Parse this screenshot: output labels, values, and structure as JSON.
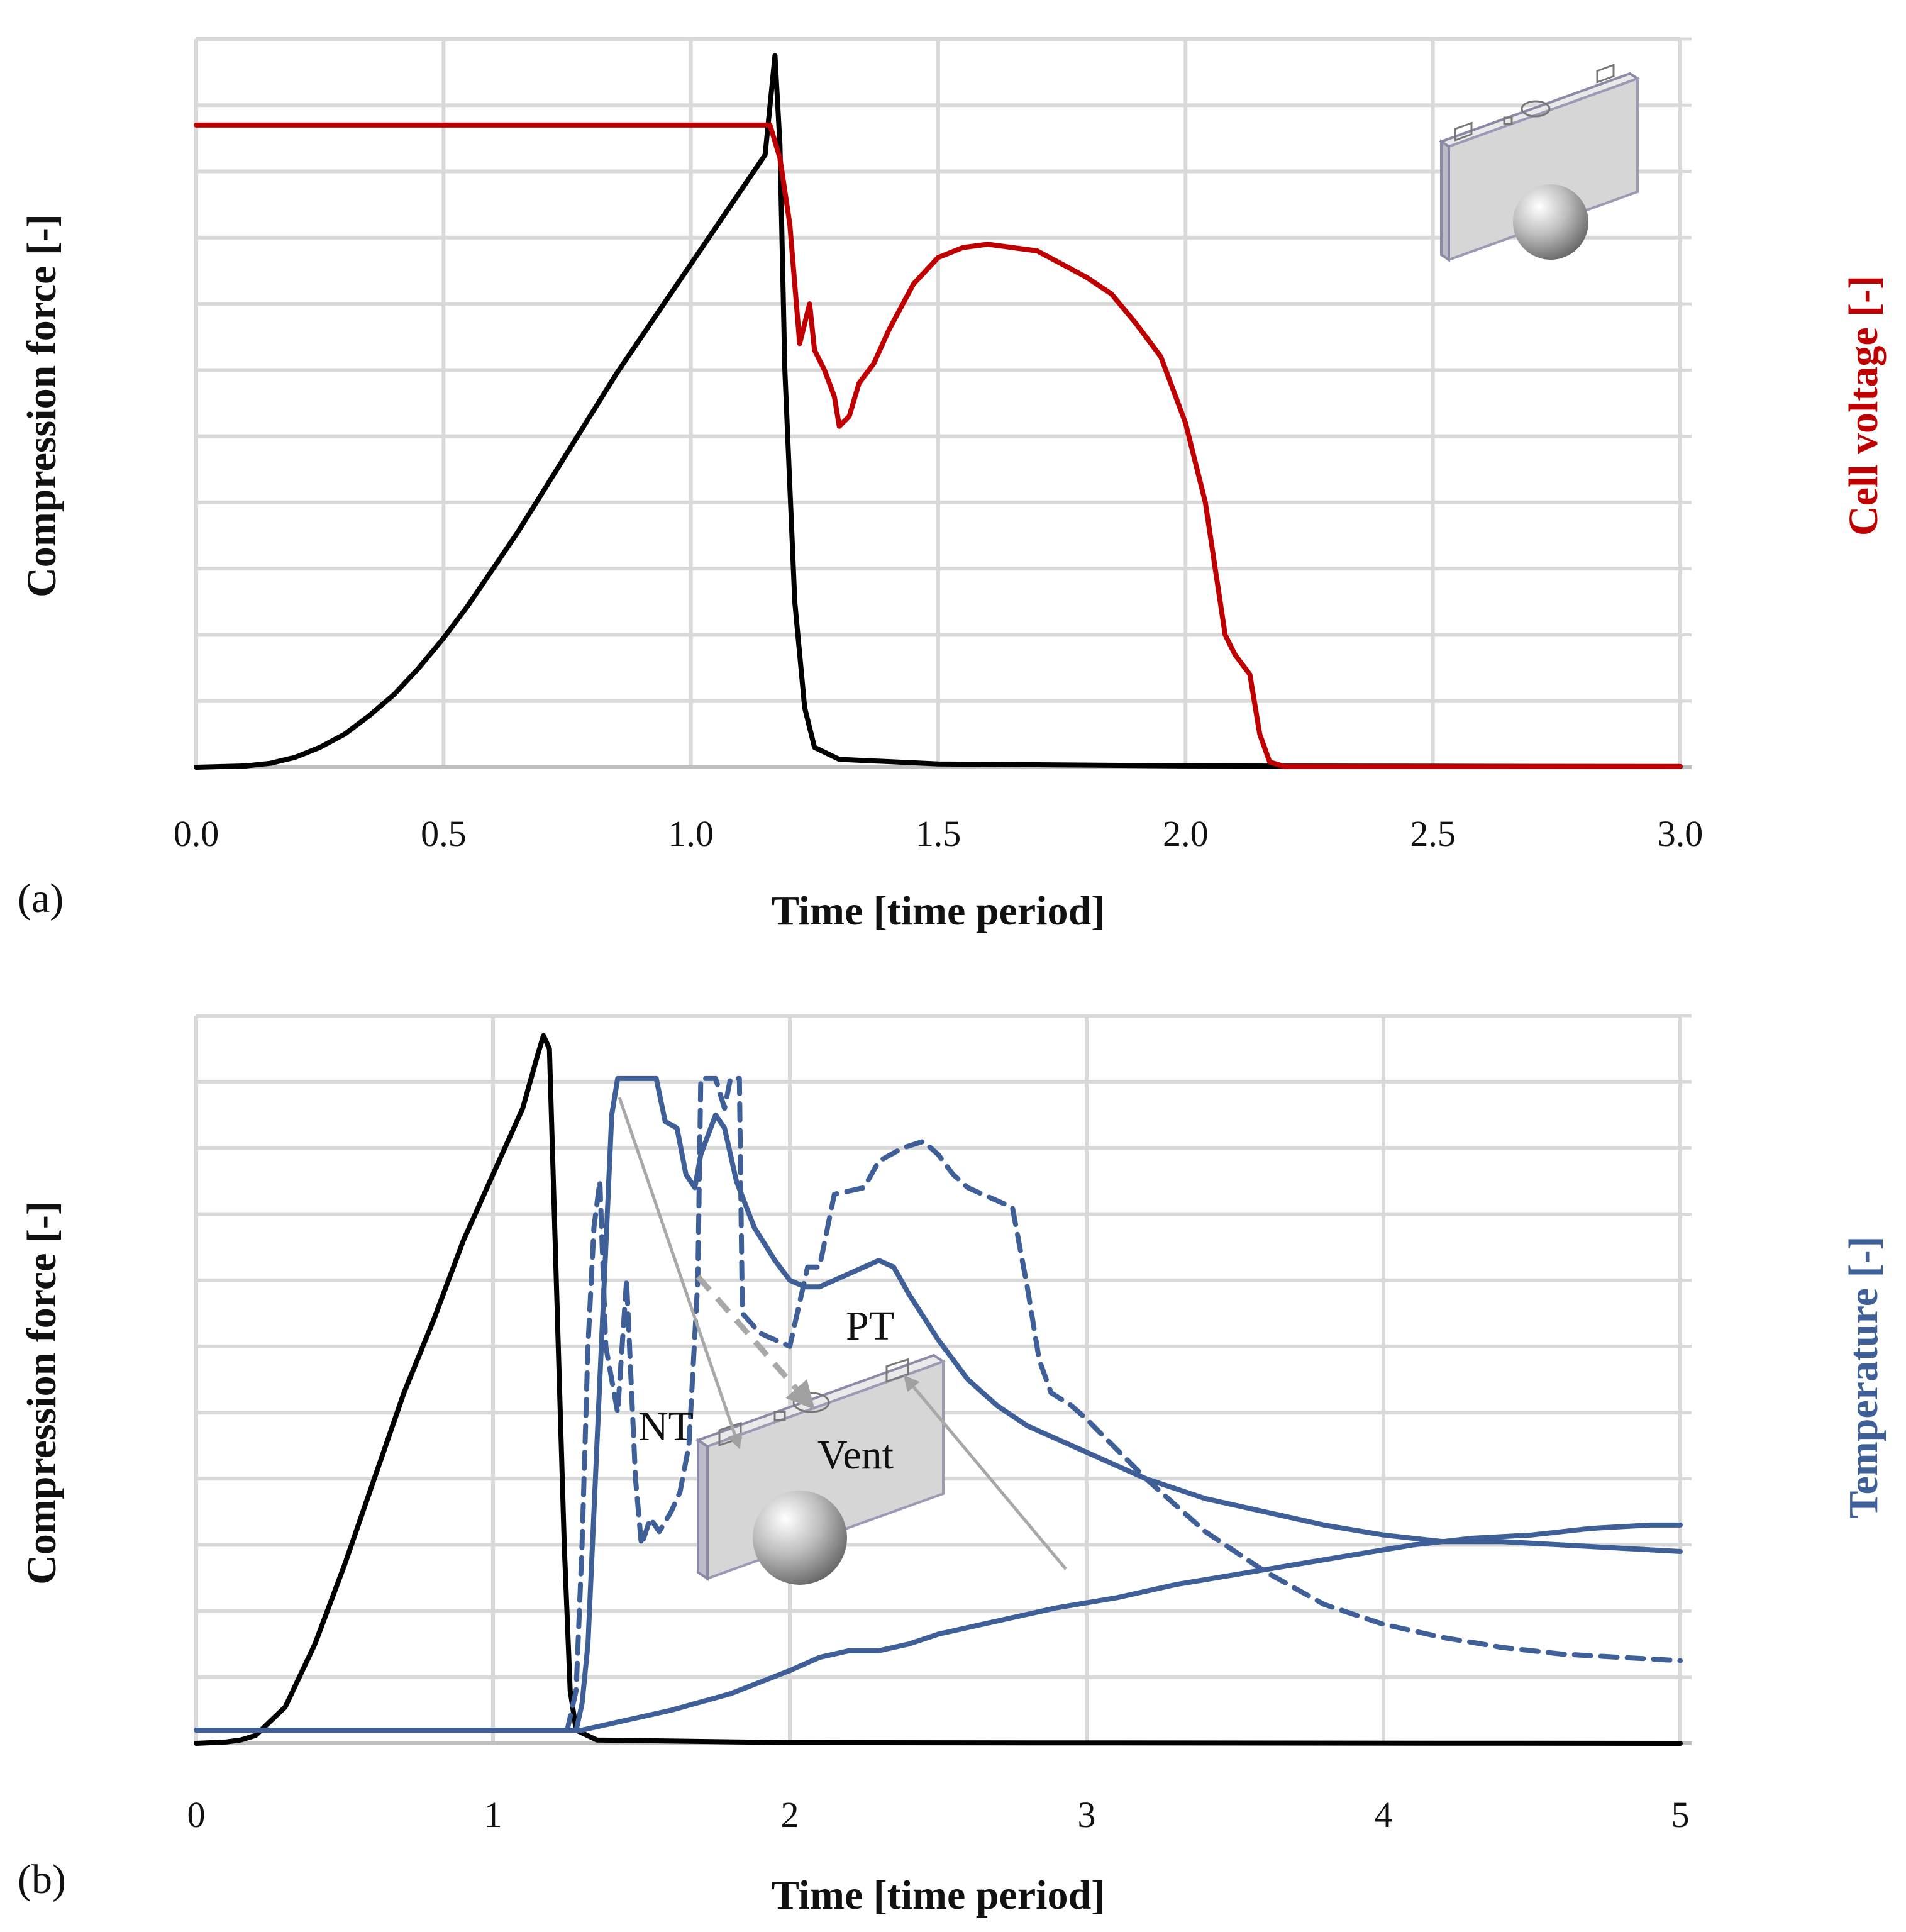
{
  "chart_data": [
    {
      "type": "line",
      "panel_label": "(a)",
      "xlabel": "Time [time period]",
      "ylabel_left": "Compression force [-]",
      "ylabel_right": "Cell voltage [-]",
      "xlim": [
        0,
        3
      ],
      "ylim": [
        0,
        11
      ],
      "x_ticks": [
        "0.0",
        "0.5",
        "1.0",
        "1.5",
        "2.0",
        "2.5",
        "3.0"
      ],
      "grid": true,
      "colors": {
        "force": "#000000",
        "voltage": "#c00000"
      },
      "series": [
        {
          "name": "Compression force",
          "color": "#000000",
          "points": [
            [
              0,
              0
            ],
            [
              0.1,
              0.02
            ],
            [
              0.15,
              0.06
            ],
            [
              0.2,
              0.15
            ],
            [
              0.25,
              0.3
            ],
            [
              0.3,
              0.5
            ],
            [
              0.35,
              0.78
            ],
            [
              0.4,
              1.1
            ],
            [
              0.45,
              1.5
            ],
            [
              0.5,
              1.95
            ],
            [
              0.55,
              2.45
            ],
            [
              0.6,
              3.0
            ],
            [
              0.65,
              3.55
            ],
            [
              0.7,
              4.15
            ],
            [
              0.75,
              4.75
            ],
            [
              0.8,
              5.35
            ],
            [
              0.85,
              5.95
            ],
            [
              0.9,
              6.5
            ],
            [
              0.95,
              7.05
            ],
            [
              1.0,
              7.6
            ],
            [
              1.05,
              8.15
            ],
            [
              1.1,
              8.7
            ],
            [
              1.15,
              9.25
            ],
            [
              1.17,
              10.75
            ],
            [
              1.18,
              9.4
            ],
            [
              1.19,
              6.0
            ],
            [
              1.21,
              2.5
            ],
            [
              1.23,
              0.9
            ],
            [
              1.25,
              0.3
            ],
            [
              1.3,
              0.12
            ],
            [
              1.5,
              0.05
            ],
            [
              2.0,
              0.02
            ],
            [
              3.0,
              0.01
            ]
          ]
        },
        {
          "name": "Cell voltage",
          "color": "#c00000",
          "points": [
            [
              0,
              9.7
            ],
            [
              1.16,
              9.7
            ],
            [
              1.18,
              9.2
            ],
            [
              1.2,
              8.2
            ],
            [
              1.22,
              6.4
            ],
            [
              1.24,
              7.0
            ],
            [
              1.25,
              6.3
            ],
            [
              1.27,
              6.0
            ],
            [
              1.29,
              5.6
            ],
            [
              1.3,
              5.15
            ],
            [
              1.32,
              5.3
            ],
            [
              1.34,
              5.8
            ],
            [
              1.37,
              6.1
            ],
            [
              1.4,
              6.6
            ],
            [
              1.45,
              7.3
            ],
            [
              1.5,
              7.7
            ],
            [
              1.55,
              7.85
            ],
            [
              1.6,
              7.9
            ],
            [
              1.65,
              7.85
            ],
            [
              1.7,
              7.8
            ],
            [
              1.75,
              7.6
            ],
            [
              1.8,
              7.4
            ],
            [
              1.85,
              7.15
            ],
            [
              1.9,
              6.7
            ],
            [
              1.95,
              6.2
            ],
            [
              2.0,
              5.2
            ],
            [
              2.04,
              4.0
            ],
            [
              2.06,
              3.0
            ],
            [
              2.08,
              2.0
            ],
            [
              2.1,
              1.7
            ],
            [
              2.13,
              1.4
            ],
            [
              2.15,
              0.5
            ],
            [
              2.17,
              0.08
            ],
            [
              2.2,
              0.01
            ],
            [
              3.0,
              0.01
            ]
          ]
        }
      ]
    },
    {
      "type": "line",
      "panel_label": "(b)",
      "xlabel": "Time [time period]",
      "ylabel_left": "Compression force [-]",
      "ylabel_right": "Temperature [-]",
      "xlim": [
        0,
        5
      ],
      "ylim": [
        0,
        11
      ],
      "x_ticks": [
        "0",
        "1",
        "2",
        "3",
        "4",
        "5"
      ],
      "grid": true,
      "colors": {
        "force": "#000000",
        "temperature": "#3e5f98"
      },
      "annotations": [
        "PT",
        "NT",
        "Vent"
      ],
      "series": [
        {
          "name": "Compression force",
          "color": "#000000",
          "style": "solid",
          "points": [
            [
              0,
              0
            ],
            [
              0.1,
              0.02
            ],
            [
              0.15,
              0.05
            ],
            [
              0.2,
              0.12
            ],
            [
              0.3,
              0.55
            ],
            [
              0.4,
              1.5
            ],
            [
              0.5,
              2.7
            ],
            [
              0.6,
              4.0
            ],
            [
              0.7,
              5.3
            ],
            [
              0.8,
              6.4
            ],
            [
              0.9,
              7.6
            ],
            [
              1.0,
              8.6
            ],
            [
              1.1,
              9.6
            ],
            [
              1.15,
              10.4
            ],
            [
              1.17,
              10.7
            ],
            [
              1.19,
              10.5
            ],
            [
              1.2,
              9.0
            ],
            [
              1.22,
              6.0
            ],
            [
              1.24,
              3.0
            ],
            [
              1.26,
              0.8
            ],
            [
              1.28,
              0.2
            ],
            [
              1.35,
              0.05
            ],
            [
              2.0,
              0.01
            ],
            [
              5.0,
              0.0
            ]
          ]
        },
        {
          "name": "Temperature (Vent)",
          "color": "#3e5f98",
          "style": "solid",
          "points": [
            [
              0,
              0.2
            ],
            [
              1.28,
              0.2
            ],
            [
              1.3,
              0.6
            ],
            [
              1.32,
              1.5
            ],
            [
              1.34,
              3.5
            ],
            [
              1.36,
              5.5
            ],
            [
              1.38,
              7.5
            ],
            [
              1.4,
              9.5
            ],
            [
              1.42,
              10.05
            ],
            [
              1.55,
              10.05
            ],
            [
              1.58,
              9.4
            ],
            [
              1.62,
              9.3
            ],
            [
              1.65,
              8.6
            ],
            [
              1.68,
              8.4
            ],
            [
              1.7,
              8.9
            ],
            [
              1.75,
              9.5
            ],
            [
              1.78,
              9.3
            ],
            [
              1.82,
              8.5
            ],
            [
              1.88,
              7.8
            ],
            [
              1.95,
              7.3
            ],
            [
              2.0,
              7.0
            ],
            [
              2.05,
              6.9
            ],
            [
              2.1,
              6.9
            ],
            [
              2.2,
              7.1
            ],
            [
              2.3,
              7.3
            ],
            [
              2.35,
              7.2
            ],
            [
              2.4,
              6.8
            ],
            [
              2.5,
              6.1
            ],
            [
              2.6,
              5.5
            ],
            [
              2.7,
              5.1
            ],
            [
              2.8,
              4.8
            ],
            [
              3.0,
              4.4
            ],
            [
              3.2,
              4.0
            ],
            [
              3.4,
              3.7
            ],
            [
              3.6,
              3.5
            ],
            [
              3.8,
              3.3
            ],
            [
              4.0,
              3.15
            ],
            [
              4.2,
              3.05
            ],
            [
              4.4,
              3.05
            ],
            [
              4.6,
              3.0
            ],
            [
              4.8,
              2.95
            ],
            [
              5.0,
              2.9
            ]
          ]
        },
        {
          "name": "Temperature (NT)",
          "color": "#3e5f98",
          "style": "dashed",
          "points": [
            [
              0,
              0.2
            ],
            [
              1.25,
              0.2
            ],
            [
              1.28,
              0.8
            ],
            [
              1.3,
              3.0
            ],
            [
              1.32,
              6.0
            ],
            [
              1.34,
              7.8
            ],
            [
              1.36,
              8.5
            ],
            [
              1.38,
              6.0
            ],
            [
              1.42,
              5.0
            ],
            [
              1.45,
              7.0
            ],
            [
              1.48,
              4.0
            ],
            [
              1.5,
              3.0
            ],
            [
              1.53,
              3.4
            ],
            [
              1.56,
              3.2
            ],
            [
              1.6,
              3.5
            ],
            [
              1.63,
              3.8
            ],
            [
              1.66,
              4.5
            ],
            [
              1.69,
              7.0
            ],
            [
              1.7,
              10.05
            ],
            [
              1.75,
              10.05
            ],
            [
              1.78,
              9.6
            ],
            [
              1.8,
              10.05
            ],
            [
              1.83,
              10.05
            ],
            [
              1.84,
              6.5
            ],
            [
              1.9,
              6.2
            ],
            [
              2.0,
              6.0
            ],
            [
              2.06,
              7.2
            ],
            [
              2.1,
              7.2
            ],
            [
              2.15,
              8.3
            ],
            [
              2.25,
              8.4
            ],
            [
              2.3,
              8.8
            ],
            [
              2.38,
              9.0
            ],
            [
              2.45,
              9.1
            ],
            [
              2.5,
              8.9
            ],
            [
              2.55,
              8.6
            ],
            [
              2.6,
              8.4
            ],
            [
              2.65,
              8.3
            ],
            [
              2.75,
              8.1
            ],
            [
              2.8,
              6.9
            ],
            [
              2.84,
              5.8
            ],
            [
              2.88,
              5.3
            ],
            [
              2.95,
              5.1
            ],
            [
              3.0,
              4.9
            ],
            [
              3.2,
              4.0
            ],
            [
              3.4,
              3.2
            ],
            [
              3.6,
              2.6
            ],
            [
              3.8,
              2.1
            ],
            [
              4.0,
              1.8
            ],
            [
              4.2,
              1.6
            ],
            [
              4.4,
              1.45
            ],
            [
              4.6,
              1.35
            ],
            [
              4.8,
              1.3
            ],
            [
              5.0,
              1.25
            ]
          ]
        },
        {
          "name": "Temperature (PT)",
          "color": "#3e5f98",
          "style": "solid",
          "points": [
            [
              0,
              0.2
            ],
            [
              1.3,
              0.2
            ],
            [
              1.4,
              0.3
            ],
            [
              1.5,
              0.4
            ],
            [
              1.6,
              0.5
            ],
            [
              1.8,
              0.75
            ],
            [
              2.0,
              1.1
            ],
            [
              2.1,
              1.3
            ],
            [
              2.2,
              1.4
            ],
            [
              2.3,
              1.4
            ],
            [
              2.4,
              1.5
            ],
            [
              2.5,
              1.65
            ],
            [
              2.7,
              1.85
            ],
            [
              2.9,
              2.05
            ],
            [
              3.1,
              2.2
            ],
            [
              3.3,
              2.4
            ],
            [
              3.5,
              2.55
            ],
            [
              3.7,
              2.7
            ],
            [
              3.9,
              2.85
            ],
            [
              4.1,
              3.0
            ],
            [
              4.3,
              3.1
            ],
            [
              4.5,
              3.15
            ],
            [
              4.7,
              3.25
            ],
            [
              4.9,
              3.3
            ],
            [
              5.0,
              3.3
            ]
          ]
        }
      ]
    }
  ]
}
